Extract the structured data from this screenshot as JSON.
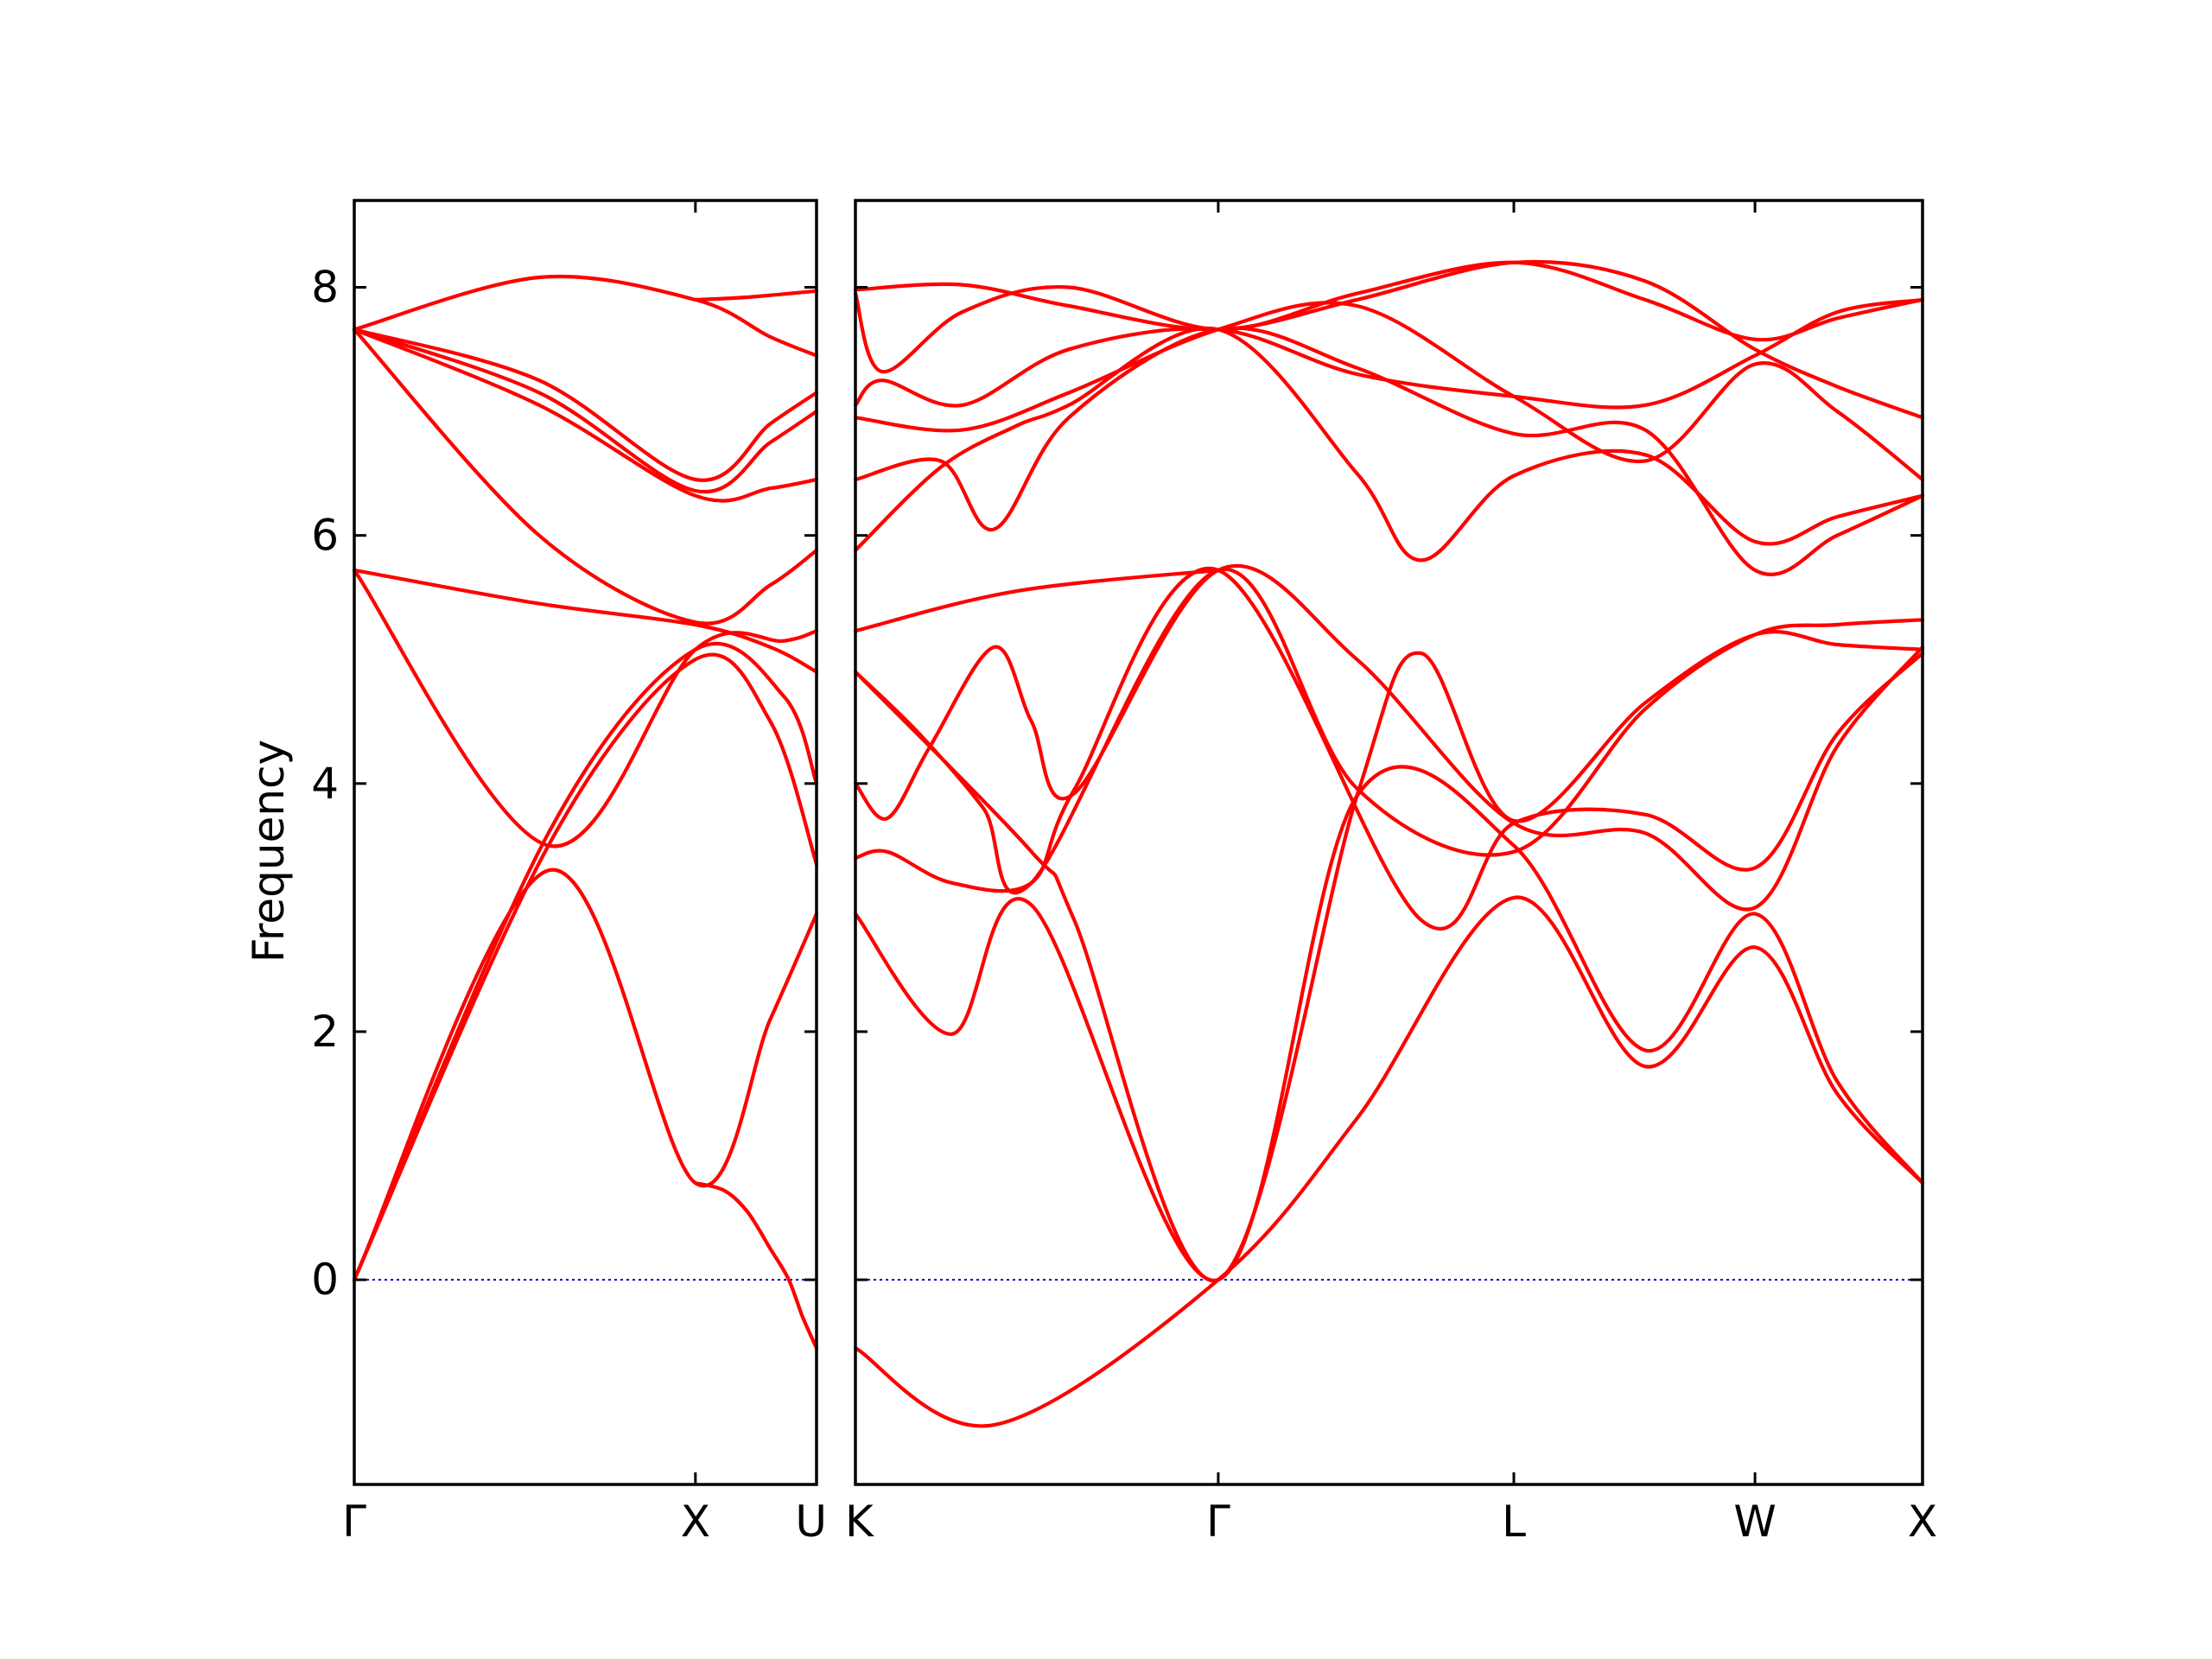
{
  "chart_data": {
    "type": "line",
    "ylabel": "Frequency",
    "ylim": [
      -1.65,
      8.7
    ],
    "yticks": [
      0,
      2,
      4,
      6,
      8
    ],
    "colors": {
      "band": "#ff0000",
      "zero_line": "#0000cc",
      "frame": "#000000"
    },
    "panels": [
      {
        "xlim": [
          0,
          1.0
        ],
        "xticks": [
          {
            "x": 0.0,
            "label": "Γ"
          },
          {
            "x": 0.738,
            "label": "X"
          },
          {
            "x": 1.0,
            "label": "U"
          }
        ],
        "series": [
          {
            "x": [
              0,
              0.42,
              0.738,
              0.9,
              1.0
            ],
            "y": [
              0,
              3.3,
              0.78,
              2.1,
              2.95
            ]
          },
          {
            "x": [
              0,
              0.42,
              0.738,
              0.9,
              1.0
            ],
            "y": [
              0,
              3.5,
              5.0,
              4.5,
              3.35
            ]
          },
          {
            "x": [
              0,
              0.42,
              0.738,
              0.93,
              1.0
            ],
            "y": [
              0,
              3.6,
              5.08,
              4.7,
              4.0
            ]
          },
          {
            "x": [
              0,
              0.42,
              0.738,
              0.93,
              1.0
            ],
            "y": [
              5.72,
              3.5,
              5.08,
              5.15,
              5.23
            ]
          },
          {
            "x": [
              0,
              0.4,
              0.738,
              0.9,
              1.0
            ],
            "y": [
              5.72,
              5.45,
              5.28,
              5.1,
              4.9
            ]
          },
          {
            "x": [
              0,
              0.4,
              0.738,
              0.9,
              1.0
            ],
            "y": [
              7.66,
              6.0,
              5.3,
              5.6,
              5.88
            ]
          },
          {
            "x": [
              0,
              0.4,
              0.738,
              0.9,
              1.0
            ],
            "y": [
              7.66,
              7.05,
              6.32,
              6.38,
              6.45
            ]
          },
          {
            "x": [
              0,
              0.4,
              0.738,
              0.9,
              1.0
            ],
            "y": [
              7.66,
              7.15,
              6.36,
              6.75,
              7.0
            ]
          },
          {
            "x": [
              0,
              0.4,
              0.738,
              0.9,
              1.0
            ],
            "y": [
              7.66,
              7.25,
              6.45,
              6.9,
              7.15
            ]
          },
          {
            "x": [
              0,
              0.4,
              0.738,
              0.9,
              1.0
            ],
            "y": [
              7.66,
              8.08,
              7.9,
              7.6,
              7.45
            ]
          },
          {
            "x": [
              0.738,
              0.85,
              1.0
            ],
            "y": [
              7.9,
              7.92,
              7.97
            ]
          },
          {
            "x": [
              0.738,
              0.8,
              0.85,
              0.9,
              0.94,
              0.97,
              1.0
            ],
            "y": [
              0.78,
              0.72,
              0.55,
              0.25,
              0.0,
              -0.3,
              -0.55
            ]
          }
        ]
      },
      {
        "xlim": [
          0,
          1.0
        ],
        "xticks": [
          {
            "x": 0.0,
            "label": "K"
          },
          {
            "x": 0.34,
            "label": "Γ"
          },
          {
            "x": 0.617,
            "label": "L"
          },
          {
            "x": 0.843,
            "label": "W"
          },
          {
            "x": 1.0,
            "label": "X"
          }
        ],
        "series": [
          {
            "x": [
              0,
              0.13,
              0.34,
              0.47,
              0.617,
              0.74,
              0.843,
              0.92,
              1.0
            ],
            "y": [
              -0.55,
              -1.17,
              0,
              1.3,
              3.08,
              1.72,
              2.68,
              1.5,
              0.78
            ]
          },
          {
            "x": [
              0,
              0.09,
              0.165,
              0.34,
              0.47,
              0.617,
              0.74,
              0.843,
              0.92,
              1.0
            ],
            "y": [
              2.95,
              1.98,
              3.02,
              0,
              3.9,
              3.5,
              1.85,
              2.95,
              1.6,
              0.78
            ]
          },
          {
            "x": [
              0,
              0.03,
              0.09,
              0.165,
              0.205,
              0.34,
              0.53,
              0.617,
              0.74,
              0.843,
              0.92,
              1.0
            ],
            "y": [
              3.4,
              3.45,
              3.2,
              3.2,
              3.95,
              5.72,
              2.9,
              3.68,
              3.75,
              3.32,
              4.4,
              5.05
            ]
          },
          {
            "x": [
              0,
              0.03,
              0.07,
              0.13,
              0.165,
              0.205,
              0.34,
              0.47,
              0.617,
              0.74,
              0.843,
              0.92,
              1.0
            ],
            "y": [
              4.0,
              3.72,
              4.3,
              5.1,
              4.5,
              3.92,
              5.72,
              5.0,
              3.68,
              3.6,
              3.0,
              4.3,
              5.1
            ]
          },
          {
            "x": [
              0,
              0.06,
              0.12,
              0.165,
              0.34,
              0.47,
              0.617,
              0.74,
              0.843,
              0.92,
              1.0
            ],
            "y": [
              4.9,
              4.4,
              3.8,
              3.2,
              5.72,
              3.96,
              3.45,
              4.6,
              5.2,
              5.28,
              5.32
            ]
          },
          {
            "x": [
              0,
              0.165,
              0.205,
              0.34,
              0.47,
              0.53,
              0.617,
              0.74,
              0.843,
              0.92,
              1.0
            ],
            "y": [
              4.9,
              3.45,
              2.9,
              0,
              3.9,
              5.05,
              3.7,
              4.65,
              5.2,
              5.12,
              5.08
            ]
          },
          {
            "x": [
              0,
              0.15,
              0.34
            ],
            "y": [
              5.23,
              5.55,
              5.72
            ]
          },
          {
            "x": [
              0,
              0.08,
              0.15,
              0.2,
              0.34,
              0.47,
              0.53,
              0.617,
              0.74,
              0.843,
              0.92,
              1.0
            ],
            "y": [
              5.88,
              6.55,
              6.88,
              7.05,
              7.66,
              6.5,
              5.8,
              6.48,
              6.65,
              5.95,
              6.15,
              6.32
            ]
          },
          {
            "x": [
              0,
              0.08,
              0.13,
              0.2,
              0.34,
              0.47,
              0.617,
              0.74,
              0.843,
              0.92,
              1.0
            ],
            "y": [
              6.45,
              6.6,
              6.05,
              6.95,
              7.66,
              7.35,
              6.82,
              6.85,
              5.72,
              6.0,
              6.32
            ]
          },
          {
            "x": [
              0,
              0.1,
              0.2,
              0.34,
              0.47,
              0.617,
              0.74,
              0.843,
              0.92,
              1.0
            ],
            "y": [
              6.95,
              6.85,
              7.15,
              7.66,
              7.85,
              7.12,
              6.6,
              7.38,
              7.0,
              6.45
            ]
          },
          {
            "x": [
              0,
              0.025,
              0.1,
              0.2,
              0.34,
              0.47,
              0.617,
              0.74,
              0.843,
              0.92,
              1.0
            ],
            "y": [
              7.05,
              7.25,
              7.05,
              7.5,
              7.66,
              7.3,
              7.12,
              7.05,
              7.45,
              7.8,
              7.9
            ]
          },
          {
            "x": [
              0,
              0.025,
              0.1,
              0.2,
              0.34,
              0.47,
              0.617,
              0.74,
              0.843,
              0.92,
              1.0
            ],
            "y": [
              7.95,
              7.32,
              7.8,
              8.0,
              7.66,
              7.95,
              8.2,
              7.9,
              7.58,
              7.75,
              7.9
            ]
          },
          {
            "x": [
              0,
              0.1,
              0.2,
              0.34,
              0.47,
              0.617,
              0.74,
              0.843,
              0.92,
              1.0
            ],
            "y": [
              7.98,
              8.02,
              7.85,
              7.66,
              7.9,
              8.2,
              8.05,
              7.5,
              7.2,
              6.95
            ]
          }
        ]
      }
    ]
  }
}
